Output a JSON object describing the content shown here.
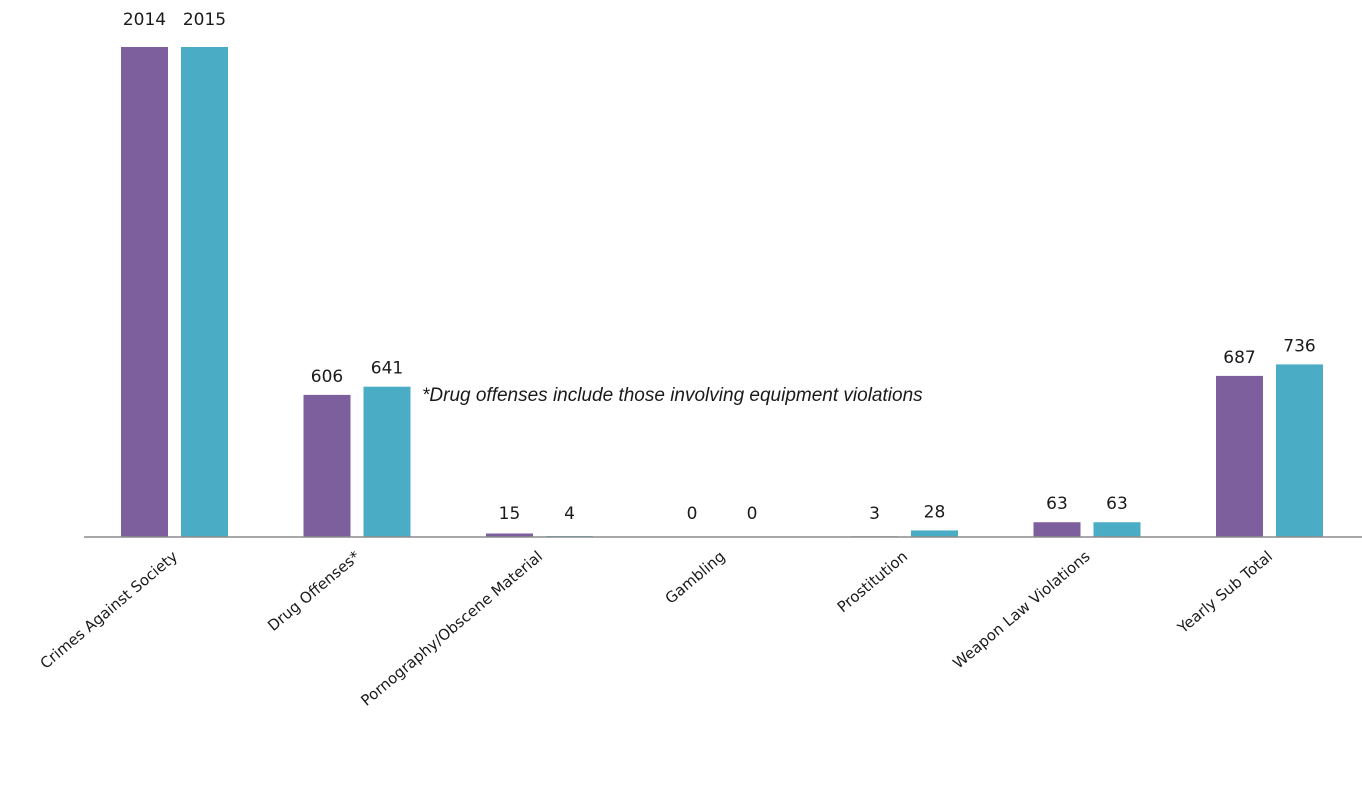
{
  "chart_data": {
    "type": "bar",
    "categories": [
      "Crimes Against Society",
      "Drug Offenses*",
      "Pornography/Obscene Material",
      "Gambling",
      "Prostitution",
      "Weapon Law Violations",
      "Yearly Sub Total"
    ],
    "series": [
      {
        "values": [
          null,
          606,
          15,
          0,
          3,
          63,
          687
        ],
        "color": "#7E5F9E"
      },
      {
        "values": [
          null,
          641,
          4,
          0,
          28,
          63,
          736
        ],
        "color": "#4BACC6"
      }
    ],
    "series_header_labels": [
      "2014",
      "2015"
    ],
    "annotation": "*Drug offenses include those involving equipment violations",
    "grid": false,
    "legend": "none"
  }
}
